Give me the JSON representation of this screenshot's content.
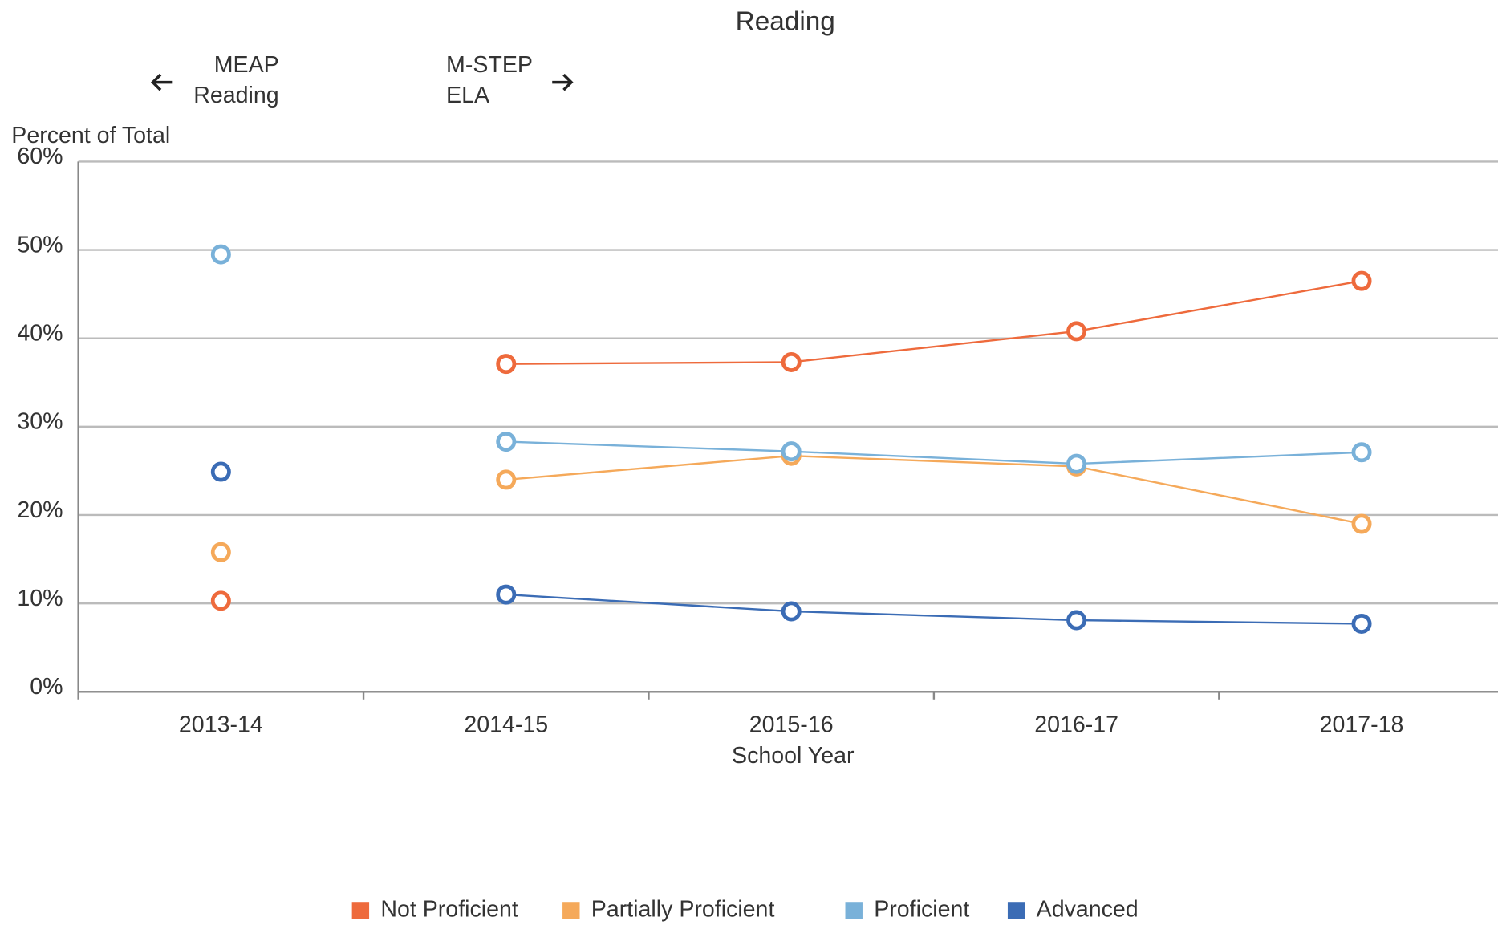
{
  "chart_data": {
    "type": "line",
    "title": "Reading",
    "y_label": "Percent of Total",
    "x_label": "School Year",
    "annotations": [
      {
        "lines": [
          "MEAP",
          "Reading"
        ]
      },
      {
        "lines": [
          "M-STEP",
          "ELA"
        ]
      }
    ],
    "categories": [
      "2013-14",
      "2014-15",
      "2015-16",
      "2016-17",
      "2017-18"
    ],
    "series": [
      {
        "name": "Not Proficient",
        "color": "#ee6a3c",
        "values": [
          10.3,
          37.1,
          37.3,
          40.8,
          46.5
        ]
      },
      {
        "name": "Partially Proficient",
        "color": "#f5a95a",
        "values": [
          15.8,
          24.0,
          26.7,
          25.5,
          19.0
        ]
      },
      {
        "name": "Proficient",
        "color": "#79b1d9",
        "values": [
          49.5,
          28.3,
          27.2,
          25.8,
          27.1
        ]
      },
      {
        "name": "Advanced",
        "color": "#3b6cb5",
        "values": [
          24.9,
          11.0,
          9.1,
          8.1,
          7.7
        ]
      }
    ],
    "ylim": [
      0,
      60
    ],
    "yticks": [
      {
        "value": 0,
        "label": "0%"
      },
      {
        "value": 10,
        "label": "10%"
      },
      {
        "value": 20,
        "label": "20%"
      },
      {
        "value": 30,
        "label": "30%"
      },
      {
        "value": 40,
        "label": "40%"
      },
      {
        "value": 50,
        "label": "50%"
      },
      {
        "value": 60,
        "label": "60%"
      }
    ],
    "grid": true
  }
}
